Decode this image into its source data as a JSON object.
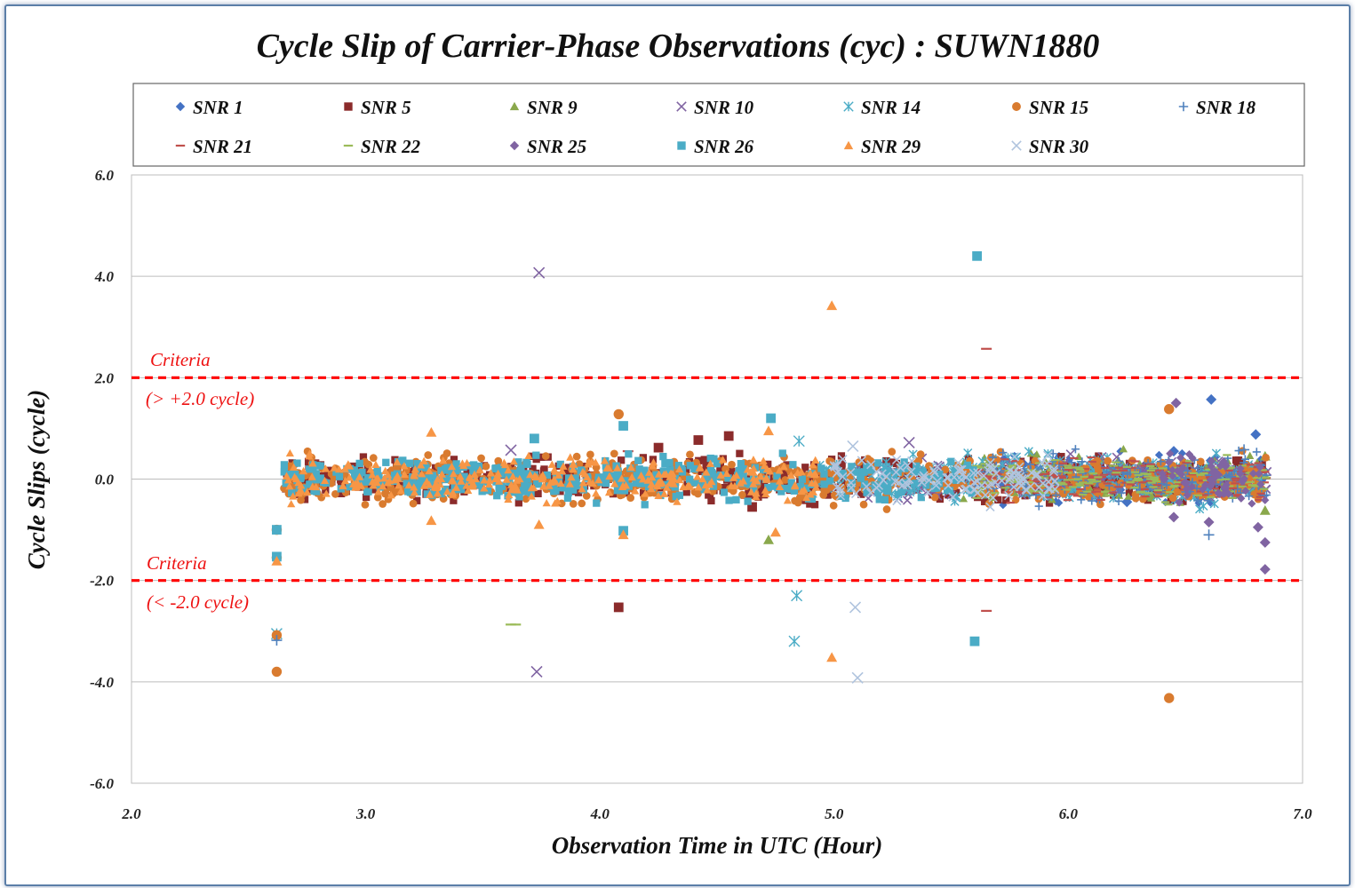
{
  "chart_data": {
    "type": "scatter",
    "title": "Cycle Slip of Carrier-Phase Observations (cyc) : SUWN1880",
    "xlabel": "Observation Time in UTC (Hour)",
    "ylabel": "Cycle Slips (cycle)",
    "xlim": [
      2.0,
      7.0
    ],
    "ylim": [
      -6.0,
      6.0
    ],
    "x_ticks": [
      "2.0",
      "3.0",
      "4.0",
      "5.0",
      "6.0",
      "7.0"
    ],
    "y_ticks": [
      "6.0",
      "4.0",
      "2.0",
      "0.0",
      "-2.0",
      "-4.0",
      "-6.0"
    ],
    "grid": "horizontal",
    "legend_position": "top",
    "series": [
      {
        "name": "SNR 1",
        "marker": "diamond",
        "color": "#4472c4",
        "range": [
          5.6,
          6.85
        ],
        "spread": 0.35,
        "points": [
          [
            6.61,
            1.57
          ],
          [
            6.8,
            0.88
          ],
          [
            6.45,
            0.55
          ],
          [
            6.25,
            -0.45
          ]
        ]
      },
      {
        "name": "SNR 5",
        "marker": "square",
        "color": "#8b2b2b",
        "range": [
          2.65,
          6.85
        ],
        "spread": 0.3,
        "points": [
          [
            4.08,
            -2.53
          ],
          [
            4.25,
            0.62
          ],
          [
            4.42,
            0.77
          ],
          [
            4.55,
            0.85
          ],
          [
            4.65,
            -0.55
          ]
        ]
      },
      {
        "name": "SNR 9",
        "marker": "triangle",
        "color": "#8aa84c",
        "range": [
          5.55,
          6.85
        ],
        "spread": 0.35,
        "points": [
          [
            6.84,
            -0.62
          ],
          [
            6.84,
            0.45
          ],
          [
            4.72,
            -1.2
          ]
        ]
      },
      {
        "name": "SNR 10",
        "marker": "x",
        "color": "#8064a2",
        "range": [
          5.1,
          6.85
        ],
        "spread": 0.3,
        "points": [
          [
            3.74,
            4.07
          ],
          [
            3.73,
            -3.8
          ],
          [
            3.62,
            0.57
          ],
          [
            5.32,
            0.72
          ]
        ]
      },
      {
        "name": "SNR 14",
        "marker": "asterisk",
        "color": "#4bacc6",
        "range": [
          4.9,
          6.85
        ],
        "spread": 0.35,
        "points": [
          [
            4.84,
            -2.3
          ],
          [
            4.83,
            -3.2
          ],
          [
            4.85,
            0.75
          ],
          [
            2.62,
            -3.05
          ]
        ]
      },
      {
        "name": "SNR 15",
        "marker": "circle",
        "color": "#d97b2f",
        "range": [
          2.65,
          6.85
        ],
        "spread": 0.35,
        "points": [
          [
            2.62,
            -3.8
          ],
          [
            6.43,
            -4.32
          ],
          [
            6.43,
            1.38
          ],
          [
            4.08,
            1.28
          ],
          [
            2.62,
            -1.0
          ],
          [
            2.62,
            -1.55
          ],
          [
            2.62,
            -3.08
          ]
        ]
      },
      {
        "name": "SNR 18",
        "marker": "plus",
        "color": "#4f81bd",
        "range": [
          5.6,
          6.85
        ],
        "spread": 0.35,
        "points": [
          [
            2.62,
            -3.18
          ],
          [
            6.6,
            -1.1
          ],
          [
            6.75,
            0.58
          ]
        ]
      },
      {
        "name": "SNR 21",
        "marker": "dash",
        "color": "#c0504d",
        "range": [
          5.6,
          6.85
        ],
        "spread": 0.3,
        "points": [
          [
            5.65,
            2.57
          ],
          [
            5.65,
            -2.6
          ],
          [
            4.12,
            0.55
          ]
        ]
      },
      {
        "name": "SNR 22",
        "marker": "dash",
        "color": "#9bbb59",
        "range": [
          5.6,
          6.85
        ],
        "spread": 0.3,
        "points": [
          [
            3.62,
            -2.87
          ],
          [
            3.64,
            -2.87
          ]
        ]
      },
      {
        "name": "SNR 25",
        "marker": "diamond",
        "color": "#8064a2",
        "range": [
          6.4,
          6.85
        ],
        "spread": 0.4,
        "points": [
          [
            6.46,
            1.5
          ],
          [
            6.84,
            -1.78
          ],
          [
            6.84,
            -1.25
          ],
          [
            6.45,
            -0.75
          ],
          [
            6.6,
            -0.85
          ],
          [
            6.81,
            -0.95
          ]
        ]
      },
      {
        "name": "SNR 26",
        "marker": "square",
        "color": "#4bacc6",
        "range": [
          2.65,
          5.6
        ],
        "spread": 0.3,
        "points": [
          [
            5.61,
            4.4
          ],
          [
            5.6,
            -3.2
          ],
          [
            2.62,
            -1.53
          ],
          [
            2.62,
            -1.0
          ],
          [
            4.1,
            1.05
          ],
          [
            4.73,
            1.2
          ],
          [
            3.72,
            0.8
          ],
          [
            4.1,
            -1.02
          ]
        ]
      },
      {
        "name": "SNR 29",
        "marker": "triangle",
        "color": "#f79646",
        "range": [
          2.65,
          4.95
        ],
        "spread": 0.3,
        "points": [
          [
            4.99,
            3.42
          ],
          [
            4.99,
            -3.52
          ],
          [
            2.62,
            -1.62
          ],
          [
            3.28,
            0.92
          ],
          [
            3.28,
            -0.82
          ],
          [
            4.72,
            0.95
          ],
          [
            4.75,
            -1.05
          ],
          [
            4.1,
            -1.1
          ],
          [
            3.74,
            -0.9
          ]
        ]
      },
      {
        "name": "SNR 30",
        "marker": "x",
        "color": "#b0c4de",
        "range": [
          5.0,
          5.95
        ],
        "spread": 0.3,
        "points": [
          [
            5.09,
            -2.53
          ],
          [
            5.1,
            -3.92
          ],
          [
            5.08,
            0.65
          ]
        ]
      }
    ],
    "annotations": [
      {
        "text": "Criteria",
        "y": 2.0
      },
      {
        "text": "(> +2.0 cycle)",
        "y": 2.0
      },
      {
        "text": "Criteria",
        "y": -2.0
      },
      {
        "text": "(< -2.0 cycle)",
        "y": -2.0
      }
    ],
    "reference_lines": [
      {
        "y": 2.0,
        "color": "#ff0000",
        "style": "dashed"
      },
      {
        "y": -2.0,
        "color": "#ff0000",
        "style": "dashed"
      }
    ]
  }
}
